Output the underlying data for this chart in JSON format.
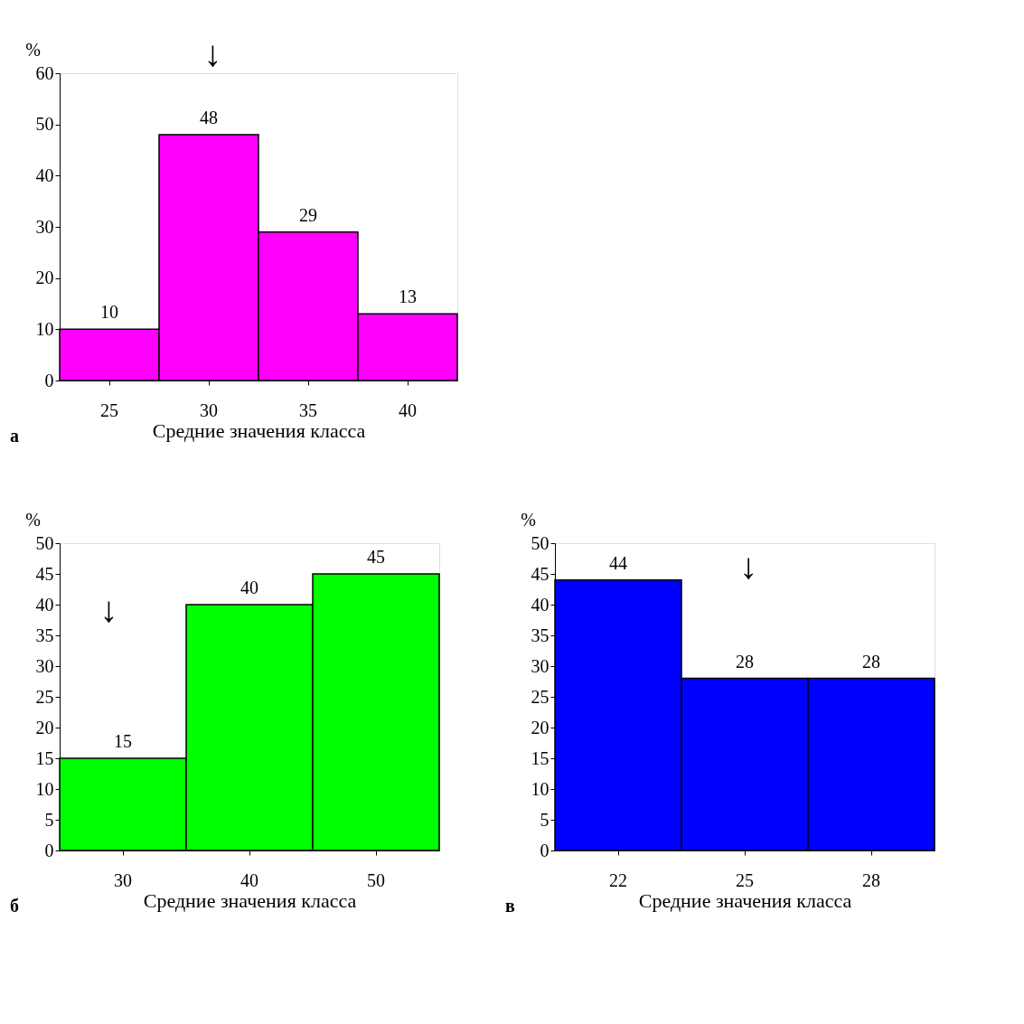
{
  "chart_data": [
    {
      "type": "bar",
      "categories": [
        "25",
        "30",
        "35",
        "40"
      ],
      "values": [
        10,
        48,
        29,
        13
      ],
      "color": "#ff00ff",
      "ylim": [
        0,
        60
      ],
      "yticks": [
        0,
        10,
        20,
        30,
        40,
        50,
        60
      ],
      "ylabel": "%",
      "xlabel": "Средние значения класса",
      "data_labels": true,
      "grid": false,
      "annotations": [
        "а",
        "↓"
      ]
    },
    {
      "type": "bar",
      "categories": [
        "30",
        "40",
        "50"
      ],
      "values": [
        15,
        40,
        45
      ],
      "color": "#00ff00",
      "ylim": [
        0,
        50
      ],
      "yticks": [
        0,
        5,
        10,
        15,
        20,
        25,
        30,
        35,
        40,
        45,
        50
      ],
      "ylabel": "%",
      "xlabel": "Средние значения класса",
      "data_labels": true,
      "grid": false,
      "annotations": [
        "б",
        "↓"
      ]
    },
    {
      "type": "bar",
      "categories": [
        "22",
        "25",
        "28"
      ],
      "values": [
        44,
        28,
        28
      ],
      "color": "#0000ff",
      "ylim": [
        0,
        50
      ],
      "yticks": [
        0,
        5,
        10,
        15,
        20,
        25,
        30,
        35,
        40,
        45,
        50
      ],
      "ylabel": "%",
      "xlabel": "Средние значения класса",
      "data_labels": true,
      "grid": false,
      "annotations": [
        "в",
        "↓"
      ]
    }
  ]
}
